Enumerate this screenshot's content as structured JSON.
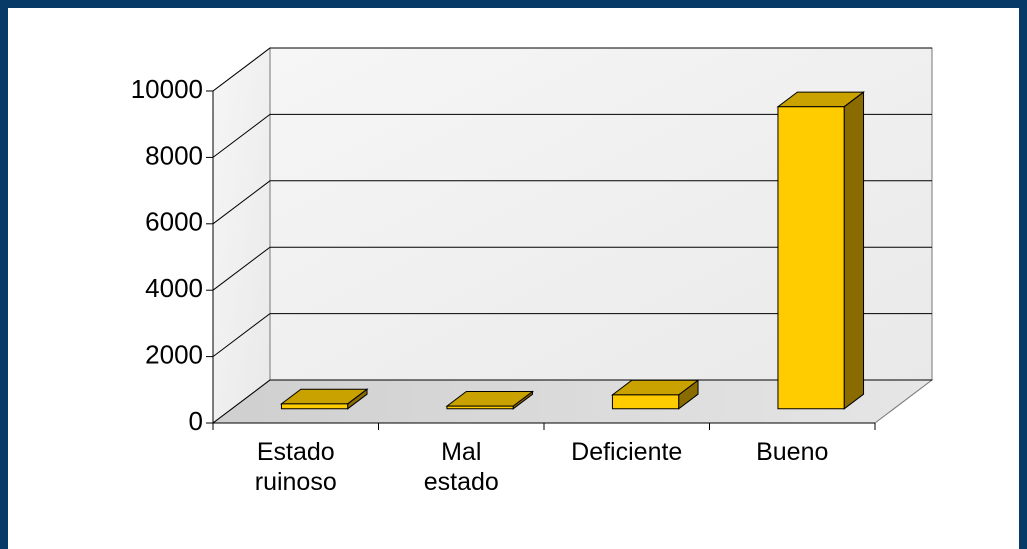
{
  "chart_data": {
    "type": "bar3d",
    "categories": [
      "Estado\nruinoso",
      "Mal\nestado",
      "Deficiente",
      "Bueno"
    ],
    "values": [
      150,
      80,
      420,
      9100
    ],
    "color": "#ffcc00",
    "ylim": [
      0,
      10000
    ],
    "yticks": [
      0,
      2000,
      4000,
      6000,
      8000,
      10000
    ],
    "grid": true
  }
}
